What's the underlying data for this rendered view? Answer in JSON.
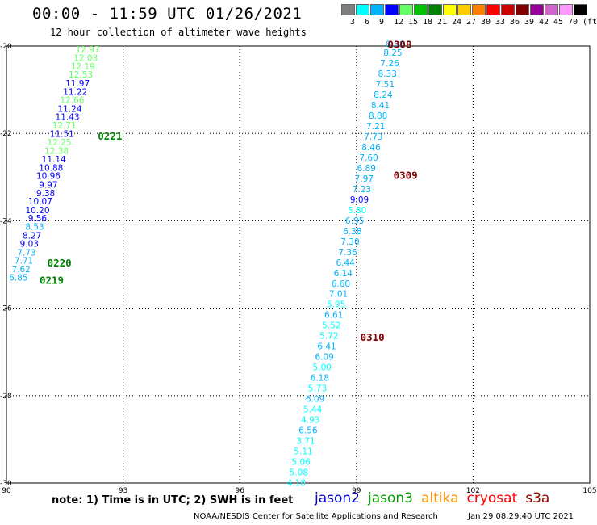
{
  "title": "00:00 - 11:59 UTC 01/26/2021",
  "subtitle": "12 hour collection of altimeter wave heights",
  "colorbar": {
    "labels": [
      "3",
      "6",
      "9",
      "12",
      "15",
      "18",
      "21",
      "24",
      "27",
      "30",
      "33",
      "36",
      "39",
      "42",
      "45",
      "70",
      "(ft)"
    ],
    "colors": [
      "#7f7f7f",
      "#00ffff",
      "#00b3ff",
      "#0000ff",
      "#66ff66",
      "#00c000",
      "#008000",
      "#ffff00",
      "#ffcc00",
      "#ff8000",
      "#ff0000",
      "#cc0000",
      "#800000",
      "#990099",
      "#cc66cc",
      "#ff99ff",
      "#000000"
    ]
  },
  "note": "note: 1) Time is in UTC; 2) SWH is in feet",
  "satellites": [
    {
      "name": "jason2",
      "color": "#0000cc"
    },
    {
      "name": "jason3",
      "color": "#00a000"
    },
    {
      "name": "altika",
      "color": "#ff9900"
    },
    {
      "name": "cryosat",
      "color": "#ff0000"
    },
    {
      "name": "s3a",
      "color": "#990000"
    }
  ],
  "credit": "NOAA/NESDIS Center for Satellite Applications and Research",
  "timestamp": "Jan 29 08:29:40 UTC 2021",
  "chart_data": {
    "type": "scatter",
    "xlim": [
      90,
      105
    ],
    "ylim": [
      -30,
      -20
    ],
    "x_ticks": [
      "90",
      "93",
      "96",
      "99",
      "102",
      "105"
    ],
    "y_ticks": [
      "-20",
      "-22",
      "-24",
      "-26",
      "-28",
      "-30"
    ],
    "grid": "dotted",
    "track_labels": [
      {
        "text": "0308",
        "lon": 99.8,
        "lat": -19.95,
        "color": "#800000"
      },
      {
        "text": "0309",
        "lon": 99.95,
        "lat": -22.95,
        "color": "#800000"
      },
      {
        "text": "0310",
        "lon": 99.1,
        "lat": -26.65,
        "color": "#800000"
      },
      {
        "text": "0221",
        "lon": 92.35,
        "lat": -22.05,
        "color": "#008000"
      },
      {
        "text": "0220",
        "lon": 91.05,
        "lat": -24.95,
        "color": "#008000"
      },
      {
        "text": "0219",
        "lon": 90.85,
        "lat": -25.35,
        "color": "#008000"
      }
    ],
    "points": [
      {
        "lon": 92.4,
        "lat": -20.07,
        "v": "12.97",
        "c": "#66ff66"
      },
      {
        "lon": 92.35,
        "lat": -20.27,
        "v": "12.03",
        "c": "#66ff66"
      },
      {
        "lon": 92.28,
        "lat": -20.46,
        "v": "12.19",
        "c": "#66ff66"
      },
      {
        "lon": 92.22,
        "lat": -20.65,
        "v": "12.53",
        "c": "#66ff66"
      },
      {
        "lon": 92.14,
        "lat": -20.85,
        "v": "11.97",
        "c": "#0000ff"
      },
      {
        "lon": 92.08,
        "lat": -21.04,
        "v": "11.22",
        "c": "#0000ff"
      },
      {
        "lon": 92.0,
        "lat": -21.23,
        "v": "12.66",
        "c": "#66ff66"
      },
      {
        "lon": 91.94,
        "lat": -21.43,
        "v": "11.24",
        "c": "#0000ff"
      },
      {
        "lon": 91.88,
        "lat": -21.62,
        "v": "11.43",
        "c": "#0000ff"
      },
      {
        "lon": 91.8,
        "lat": -21.81,
        "v": "12.71",
        "c": "#66ff66"
      },
      {
        "lon": 91.74,
        "lat": -22.01,
        "v": "11.51",
        "c": "#0000ff"
      },
      {
        "lon": 91.67,
        "lat": -22.2,
        "v": "12.25",
        "c": "#66ff66"
      },
      {
        "lon": 91.6,
        "lat": -22.39,
        "v": "12.38",
        "c": "#66ff66"
      },
      {
        "lon": 91.53,
        "lat": -22.59,
        "v": "11.14",
        "c": "#0000ff"
      },
      {
        "lon": 91.46,
        "lat": -22.78,
        "v": "10.88",
        "c": "#0000ff"
      },
      {
        "lon": 91.39,
        "lat": -22.97,
        "v": "10.96",
        "c": "#0000ff"
      },
      {
        "lon": 91.32,
        "lat": -23.17,
        "v": "9.97",
        "c": "#0000ff"
      },
      {
        "lon": 91.25,
        "lat": -23.36,
        "v": "9.38",
        "c": "#0000ff"
      },
      {
        "lon": 91.18,
        "lat": -23.55,
        "v": "10.07",
        "c": "#0000ff"
      },
      {
        "lon": 91.11,
        "lat": -23.75,
        "v": "10.20",
        "c": "#0000ff"
      },
      {
        "lon": 91.04,
        "lat": -23.94,
        "v": "9.56",
        "c": "#0000ff"
      },
      {
        "lon": 90.97,
        "lat": -24.13,
        "v": "8.53",
        "c": "#00b3ff"
      },
      {
        "lon": 90.9,
        "lat": -24.33,
        "v": "8.27",
        "c": "#0000ff"
      },
      {
        "lon": 90.83,
        "lat": -24.52,
        "v": "9.03",
        "c": "#0000ff"
      },
      {
        "lon": 90.76,
        "lat": -24.72,
        "v": "7.73",
        "c": "#00b3ff"
      },
      {
        "lon": 90.69,
        "lat": -24.91,
        "v": "7.71",
        "c": "#00b3ff"
      },
      {
        "lon": 90.62,
        "lat": -25.1,
        "v": "7.62",
        "c": "#00b3ff"
      },
      {
        "lon": 90.55,
        "lat": -25.3,
        "v": "6.85",
        "c": "#00b3ff"
      },
      {
        "lon": 100.24,
        "lat": -19.95,
        "v": "8.08",
        "c": "#00b3ff"
      },
      {
        "lon": 100.18,
        "lat": -20.15,
        "v": "8.25",
        "c": "#00b3ff"
      },
      {
        "lon": 100.1,
        "lat": -20.39,
        "v": "7.26",
        "c": "#00b3ff"
      },
      {
        "lon": 100.04,
        "lat": -20.63,
        "v": "8.33",
        "c": "#00b3ff"
      },
      {
        "lon": 99.98,
        "lat": -20.87,
        "v": "7.51",
        "c": "#00b3ff"
      },
      {
        "lon": 99.93,
        "lat": -21.11,
        "v": "8.24",
        "c": "#00b3ff"
      },
      {
        "lon": 99.86,
        "lat": -21.35,
        "v": "8.41",
        "c": "#00b3ff"
      },
      {
        "lon": 99.8,
        "lat": -21.59,
        "v": "8.88",
        "c": "#00b3ff"
      },
      {
        "lon": 99.74,
        "lat": -21.83,
        "v": "7.21",
        "c": "#00b3ff"
      },
      {
        "lon": 99.68,
        "lat": -22.07,
        "v": "7.73",
        "c": "#00b3ff"
      },
      {
        "lon": 99.62,
        "lat": -22.31,
        "v": "8.46",
        "c": "#00b3ff"
      },
      {
        "lon": 99.56,
        "lat": -22.55,
        "v": "7.60",
        "c": "#00b3ff"
      },
      {
        "lon": 99.5,
        "lat": -22.79,
        "v": "6.89",
        "c": "#00b3ff"
      },
      {
        "lon": 99.44,
        "lat": -23.03,
        "v": "7.97",
        "c": "#00b3ff"
      },
      {
        "lon": 99.38,
        "lat": -23.27,
        "v": "7.23",
        "c": "#00b3ff"
      },
      {
        "lon": 99.32,
        "lat": -23.51,
        "v": "9.09",
        "c": "#0000ff"
      },
      {
        "lon": 99.26,
        "lat": -23.75,
        "v": "5.80",
        "c": "#00ffff"
      },
      {
        "lon": 99.2,
        "lat": -23.99,
        "v": "6.95",
        "c": "#00b3ff"
      },
      {
        "lon": 99.14,
        "lat": -24.23,
        "v": "6.38",
        "c": "#00b3ff"
      },
      {
        "lon": 99.08,
        "lat": -24.47,
        "v": "7.30",
        "c": "#00b3ff"
      },
      {
        "lon": 99.02,
        "lat": -24.71,
        "v": "7.36",
        "c": "#00b3ff"
      },
      {
        "lon": 98.96,
        "lat": -24.95,
        "v": "6.44",
        "c": "#00b3ff"
      },
      {
        "lon": 98.9,
        "lat": -25.19,
        "v": "6.14",
        "c": "#00b3ff"
      },
      {
        "lon": 98.84,
        "lat": -25.43,
        "v": "6.60",
        "c": "#00b3ff"
      },
      {
        "lon": 98.78,
        "lat": -25.67,
        "v": "7.01",
        "c": "#00b3ff"
      },
      {
        "lon": 98.72,
        "lat": -25.91,
        "v": "5.95",
        "c": "#00ffff"
      },
      {
        "lon": 98.66,
        "lat": -26.15,
        "v": "6.61",
        "c": "#00b3ff"
      },
      {
        "lon": 98.6,
        "lat": -26.39,
        "v": "5.52",
        "c": "#00ffff"
      },
      {
        "lon": 98.54,
        "lat": -26.63,
        "v": "5.72",
        "c": "#00ffff"
      },
      {
        "lon": 98.48,
        "lat": -26.87,
        "v": "6.41",
        "c": "#00b3ff"
      },
      {
        "lon": 98.42,
        "lat": -27.11,
        "v": "6.09",
        "c": "#00b3ff"
      },
      {
        "lon": 98.36,
        "lat": -27.35,
        "v": "5.00",
        "c": "#00ffff"
      },
      {
        "lon": 98.3,
        "lat": -27.59,
        "v": "6.18",
        "c": "#00b3ff"
      },
      {
        "lon": 98.24,
        "lat": -27.83,
        "v": "5.73",
        "c": "#00ffff"
      },
      {
        "lon": 98.18,
        "lat": -28.07,
        "v": "6.09",
        "c": "#00b3ff"
      },
      {
        "lon": 98.12,
        "lat": -28.31,
        "v": "5.44",
        "c": "#00ffff"
      },
      {
        "lon": 98.06,
        "lat": -28.55,
        "v": "4.93",
        "c": "#00ffff"
      },
      {
        "lon": 98.0,
        "lat": -28.79,
        "v": "6.56",
        "c": "#00b3ff"
      },
      {
        "lon": 97.94,
        "lat": -29.03,
        "v": "3.71",
        "c": "#00ffff"
      },
      {
        "lon": 97.88,
        "lat": -29.27,
        "v": "5.11",
        "c": "#00ffff"
      },
      {
        "lon": 97.82,
        "lat": -29.51,
        "v": "5.06",
        "c": "#00ffff"
      },
      {
        "lon": 97.76,
        "lat": -29.75,
        "v": "5.08",
        "c": "#00ffff"
      },
      {
        "lon": 97.7,
        "lat": -29.99,
        "v": "4.18",
        "c": "#00ffff"
      }
    ]
  }
}
